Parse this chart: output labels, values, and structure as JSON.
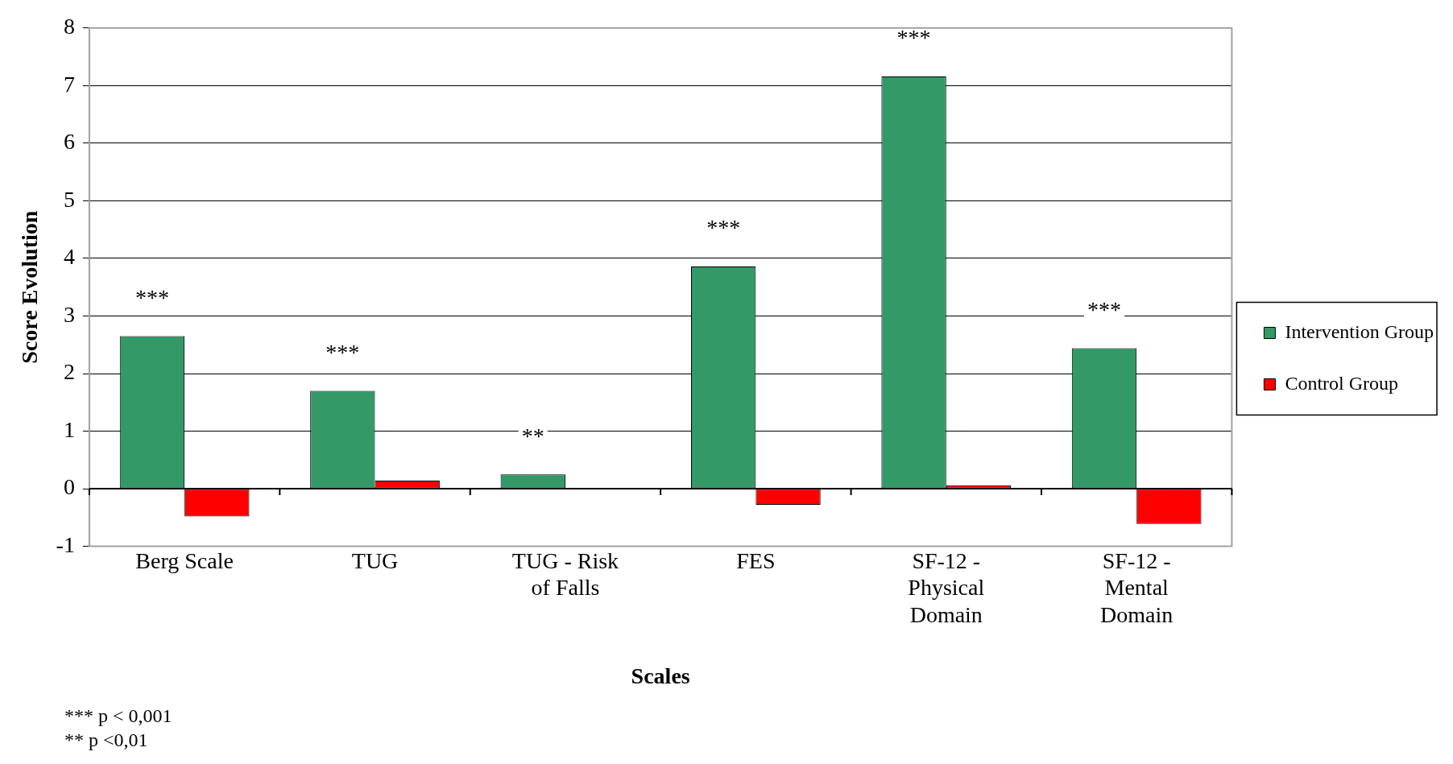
{
  "chart_data": {
    "type": "bar",
    "xlabel": "Scales",
    "ylabel": "Score Evolution",
    "categories": [
      "Berg Scale",
      "TUG",
      "TUG - Risk of Falls",
      "FES",
      "SF-12 - Physical Domain",
      "SF-12 - Mental Domain"
    ],
    "series": [
      {
        "name": "Intervention Group",
        "color": "#339966",
        "values": [
          2.65,
          1.7,
          0.25,
          3.86,
          7.16,
          2.44
        ]
      },
      {
        "name": "Control Group",
        "color": "#ff0000",
        "values": [
          -0.48,
          0.14,
          0,
          -0.28,
          0.06,
          -0.61
        ]
      }
    ],
    "ylim": [
      -1,
      8
    ],
    "yticks": [
      -1,
      0,
      1,
      2,
      3,
      4,
      5,
      6,
      7,
      8
    ],
    "grid": "y",
    "legend": "right",
    "annotations": [
      {
        "text": "***",
        "x": "Berg Scale",
        "y": 2.65
      },
      {
        "text": "***",
        "x": "TUG",
        "y": 1.7
      },
      {
        "text": "**",
        "x": "TUG - Risk of Falls",
        "y": 0.25
      },
      {
        "text": "***",
        "x": "FES",
        "y": 3.86
      },
      {
        "text": "***",
        "x": "SF-12 - Physical Domain",
        "y": 7.16
      },
      {
        "text": "***",
        "x": "SF-12 - Mental Domain",
        "y": 2.44
      },
      "*** p < 0,001",
      "** p <0,01"
    ]
  }
}
